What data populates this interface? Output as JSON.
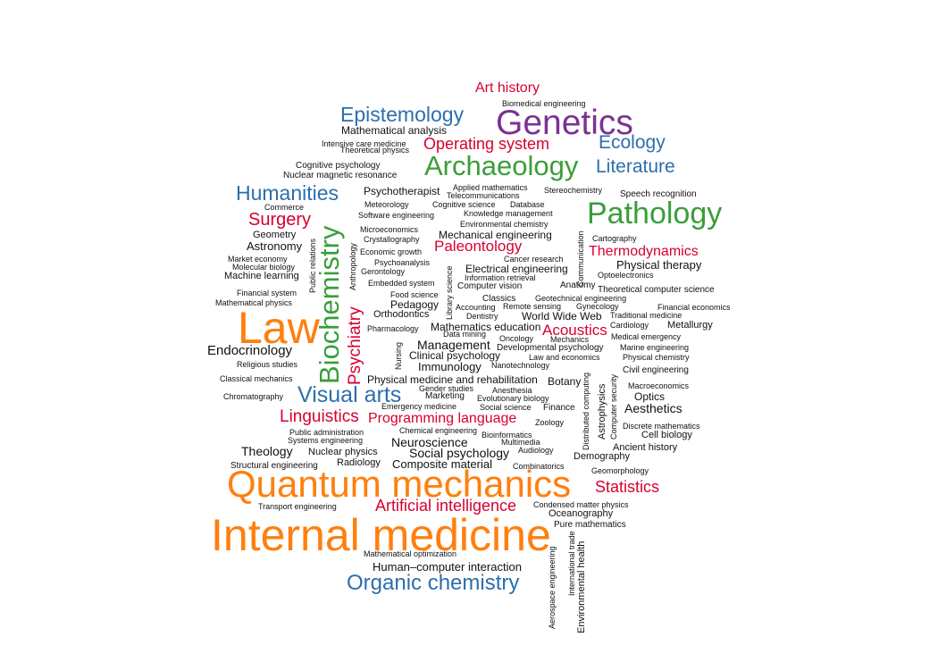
{
  "colors": {
    "orange": "#ff7f0e",
    "purple": "#7b3294",
    "green": "#3a9e3a",
    "blue": "#2c6fad",
    "red": "#d6002f",
    "black": "#111111"
  },
  "words": [
    "Internal medicine",
    "Quantum mechanics",
    "Law",
    "Genetics",
    "Pathology",
    "Biochemistry",
    "Archaeology",
    "Organic chemistry",
    "Visual arts",
    "Humanities",
    "Epistemology",
    "Ecology",
    "Literature",
    "Art history",
    "Operating system",
    "Surgery",
    "Linguistics",
    "Artificial intelligence",
    "Statistics",
    "Psychiatry",
    "Programming language",
    "Thermodynamics",
    "Paleontology",
    "Acoustics",
    "Endocrinology",
    "Theology",
    "Neuroscience",
    "Social psychology",
    "Composite material",
    "Management",
    "Aesthetics",
    "Immunology",
    "Clinical psychology",
    "Physical therapy",
    "Astronomy",
    "Mathematical analysis",
    "Human–computer interaction",
    "Physical medicine and rehabilitation",
    "Mechanical engineering",
    "Electrical engineering",
    "Mathematics education",
    "World Wide Web",
    "Pedagogy",
    "Orthodontics",
    "Optics",
    "Botany",
    "Cell biology",
    "Ancient history",
    "Metallurgy",
    "Demography",
    "Psychotherapist",
    "Oceanography",
    "Machine learning",
    "Geometry",
    "Nuclear physics",
    "Radiology",
    "Biomedical engineering",
    "Intensive care medicine",
    "Theoretical physics",
    "Cognitive psychology",
    "Nuclear magnetic resonance",
    "Applied mathematics",
    "Telecommunications",
    "Stereochemistry",
    "Speech recognition",
    "Commerce",
    "Meteorology",
    "Cognitive science",
    "Database",
    "Software engineering",
    "Knowledge management",
    "Environmental chemistry",
    "Cartography",
    "Microeconomics",
    "Crystallography",
    "Economic growth",
    "Market economy",
    "Molecular biology",
    "Psychoanalysis",
    "Gerontology",
    "Cancer research",
    "Information retrieval",
    "Optoelectronics",
    "Embedded system",
    "Computer vision",
    "Anatomy",
    "Theoretical computer science",
    "Financial system",
    "Food science",
    "Classics",
    "Geotechnical engineering",
    "Mathematical physics",
    "Remote sensing",
    "Accounting",
    "Gynecology",
    "Financial economics",
    "Dentistry",
    "Traditional medicine",
    "Pharmacology",
    "Cardiology",
    "Data mining",
    "Oncology",
    "Mechanics",
    "Medical emergency",
    "Developmental psychology",
    "Marine engineering",
    "Religious studies",
    "Law and economics",
    "Physical chemistry",
    "Nanotechnology",
    "Civil engineering",
    "Classical mechanics",
    "Gender studies",
    "Macroeconomics",
    "Anesthesia",
    "Marketing",
    "Evolutionary biology",
    "Chromatography",
    "Emergency medicine",
    "Social science",
    "Finance",
    "Zoology",
    "Discrete mathematics",
    "Chemical engineering",
    "Public administration",
    "Bioinformatics",
    "Systems engineering",
    "Multimedia",
    "Audiology",
    "Combinatorics",
    "Structural engineering",
    "Geomorphology",
    "Transport engineering",
    "Condensed matter physics",
    "Pure mathematics",
    "Mathematical optimization",
    "Public relations",
    "Anthropology",
    "Library science",
    "Communication",
    "Nursing",
    "Distributed computing",
    "Astrophysics",
    "Computer security",
    "Aerospace engineering",
    "International trade",
    "Environmental health"
  ]
}
